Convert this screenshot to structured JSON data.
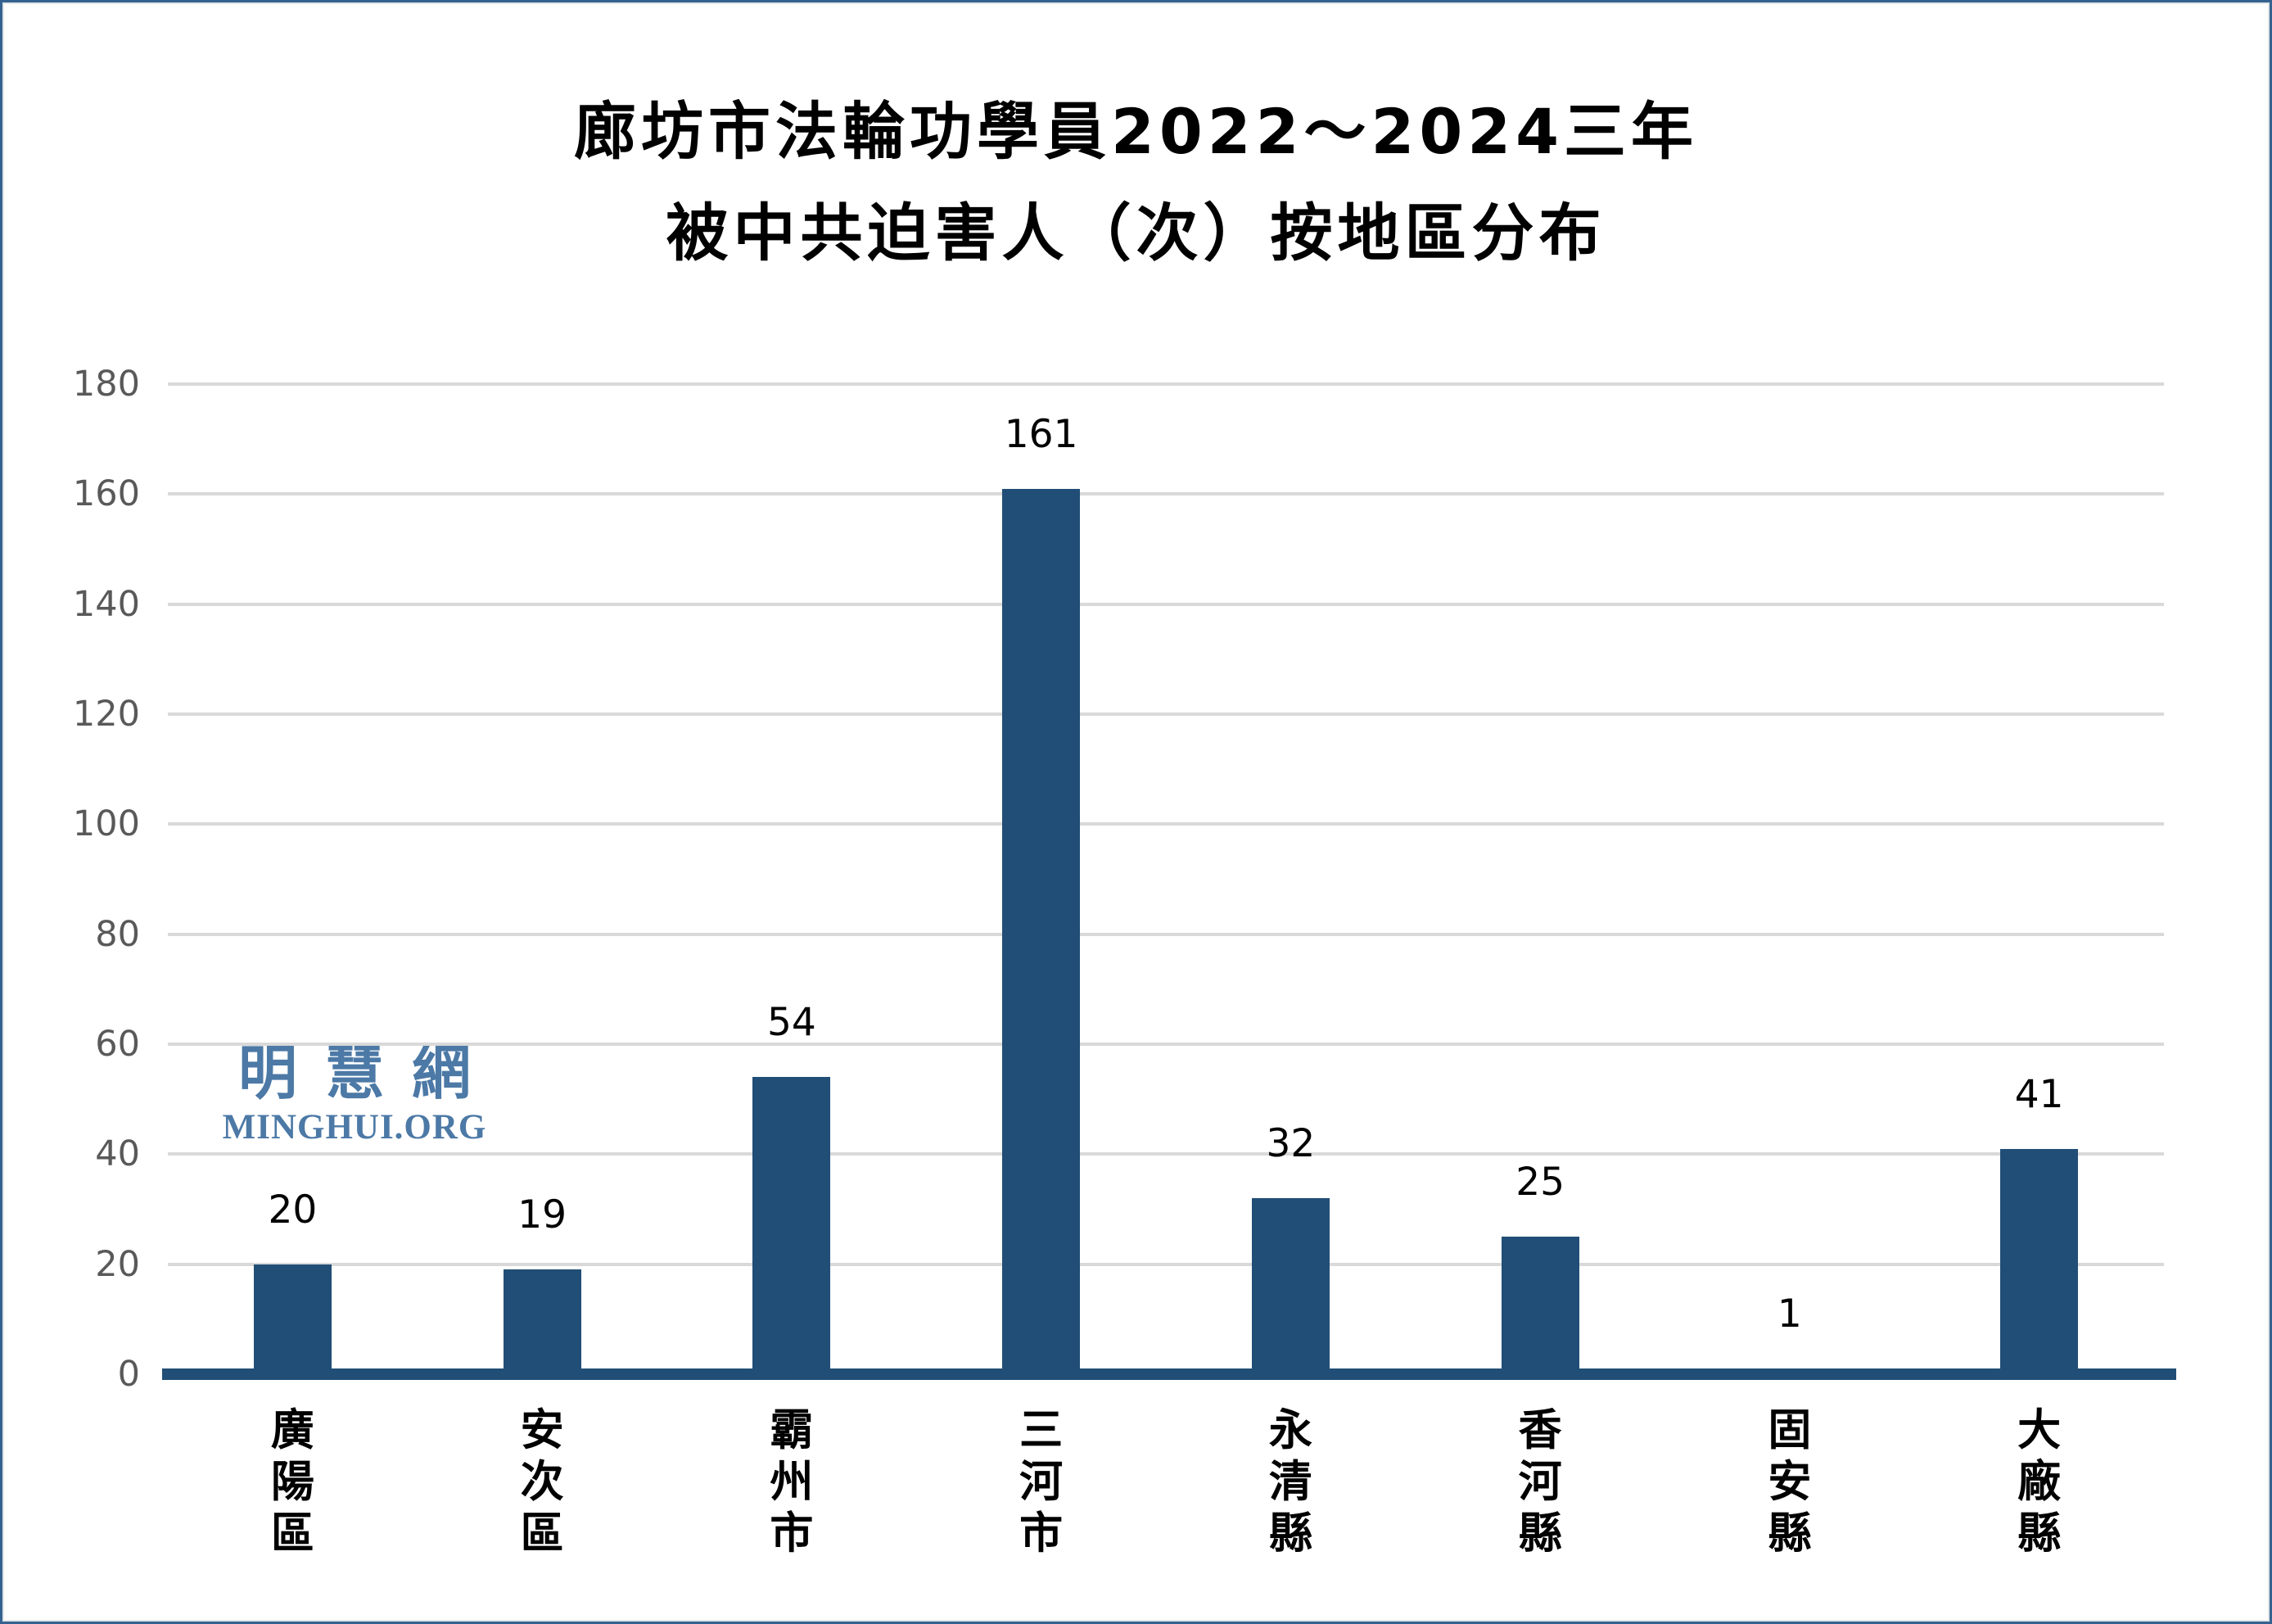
{
  "title": {
    "line1": "廊坊市法輪功學員2022～2024三年",
    "line2": "被中共迫害人（次）按地區分布"
  },
  "watermark": {
    "cjk": "明慧網",
    "latin": "MINGHUI.ORG"
  },
  "colors": {
    "bar": "#214E76",
    "axis": "#214E76",
    "grid": "#d9d9d9",
    "tick_label": "#595959",
    "value_label": "#000000",
    "watermark": "#4C79A6",
    "border": "#336290"
  },
  "chart_data": {
    "type": "bar",
    "title": "廊坊市法輪功學員2022～2024三年被中共迫害人（次）按地區分布",
    "categories": [
      "廣陽區",
      "安次區",
      "霸州市",
      "三河市",
      "永清縣",
      "香河縣",
      "固安縣",
      "大廠縣"
    ],
    "values": [
      20,
      19,
      54,
      161,
      32,
      25,
      1,
      41
    ],
    "xlabel": "",
    "ylabel": "",
    "ylim": [
      0,
      180
    ],
    "yticks": [
      0,
      20,
      40,
      60,
      80,
      100,
      120,
      140,
      160,
      180
    ],
    "grid": true,
    "legend": false,
    "bar_labels_shown": true
  }
}
